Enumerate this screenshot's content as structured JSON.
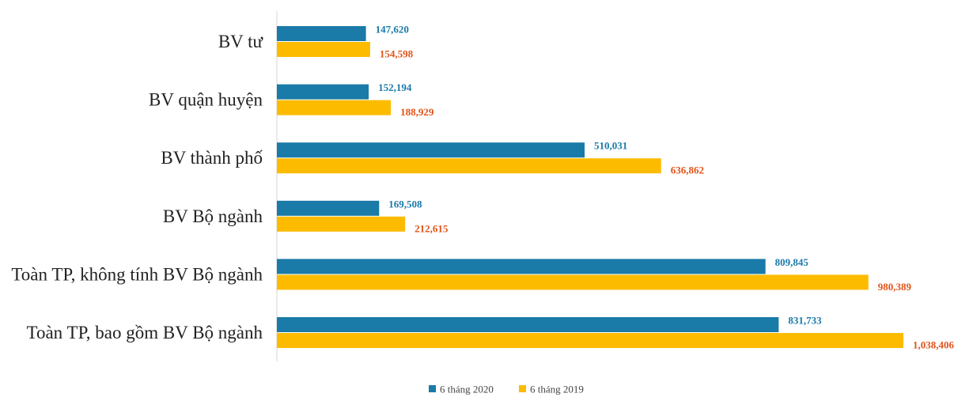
{
  "chart_data": {
    "type": "bar",
    "orientation": "horizontal",
    "categories": [
      "BV tư",
      "BV quận huyện",
      "BV thành phố",
      "BV Bộ ngành",
      "Toàn TP, không tính BV Bộ ngành",
      "Toàn TP, bao gồm BV Bộ ngành"
    ],
    "series": [
      {
        "name": "6 tháng 2020",
        "color": "#1a7aa8",
        "label_color": "#1a7aa8",
        "values": [
          147620,
          152194,
          510031,
          169508,
          809845,
          831733
        ],
        "labels": [
          "147,620",
          "152,194",
          "510,031",
          "169,508",
          "809,845",
          "831,733"
        ]
      },
      {
        "name": "6 tháng 2019",
        "color": "#fdbb00",
        "label_color": "#e0541a",
        "values": [
          154598,
          188929,
          636862,
          212615,
          980389,
          1038406
        ],
        "labels": [
          "154,598",
          "188,929",
          "636,862",
          "212,615",
          "980,389",
          "1,038,406"
        ]
      }
    ],
    "xlim": [
      0,
      1050000
    ],
    "grid": false,
    "legend_position": "bottom-center",
    "title": "",
    "xlabel": "",
    "ylabel": ""
  }
}
